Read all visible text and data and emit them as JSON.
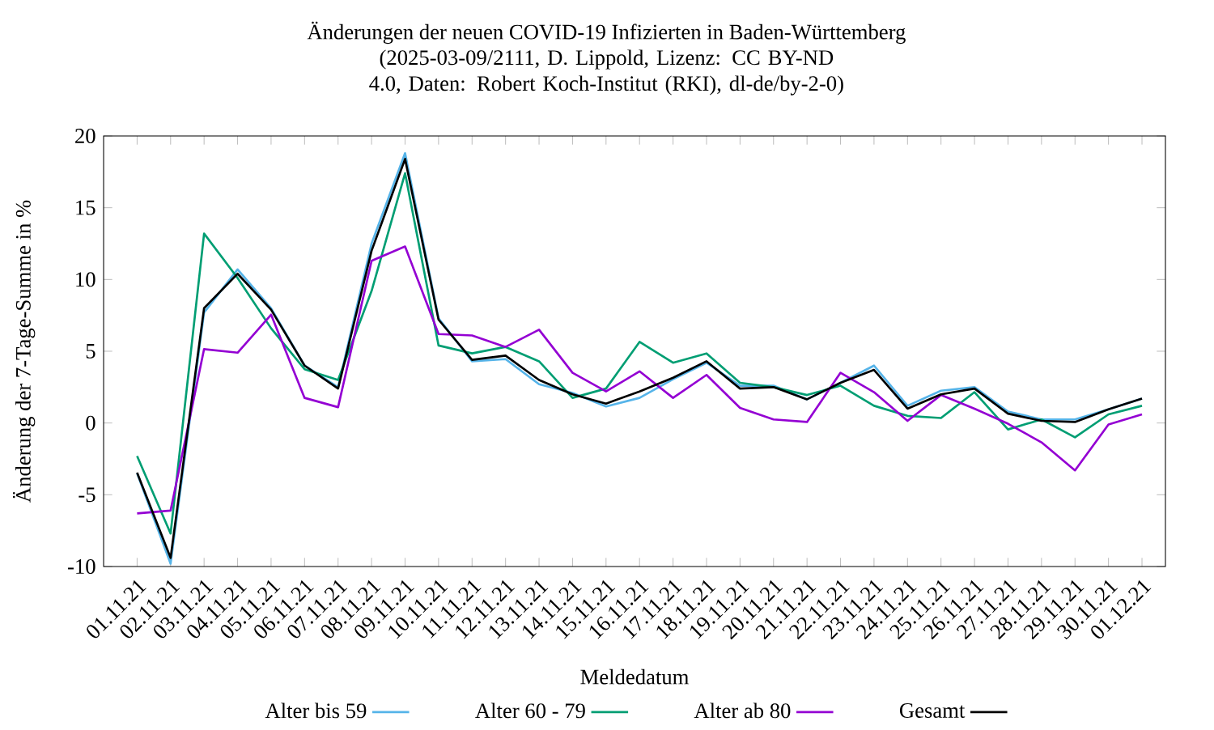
{
  "chart_data": {
    "type": "line",
    "title": "Änderungen der neuen COVID-19 Infizierten in Baden-Württemberg",
    "subtitle": "(2025-03-09/2111, D. Lippold, Lizenz: CC BY-ND 4.0, Daten: Robert Koch-Institut (RKI), dl-de/by-2-0)",
    "xlabel": "Meldedatum",
    "ylabel": "Änderung der 7-Tage-Summe in %",
    "categories": [
      "01.11.21",
      "02.11.21",
      "03.11.21",
      "04.11.21",
      "05.11.21",
      "06.11.21",
      "07.11.21",
      "08.11.21",
      "09.11.21",
      "10.11.21",
      "11.11.21",
      "12.11.21",
      "13.11.21",
      "14.11.21",
      "15.11.21",
      "16.11.21",
      "17.11.21",
      "18.11.21",
      "19.11.21",
      "20.11.21",
      "21.11.21",
      "22.11.21",
      "23.11.21",
      "24.11.21",
      "25.11.21",
      "26.11.21",
      "27.11.21",
      "28.11.21",
      "29.11.21",
      "30.11.21",
      "01.12.21"
    ],
    "series": [
      {
        "name": "Alter bis 59",
        "color": "#56b4e9",
        "values": [
          -3.5,
          -9.8,
          7.7,
          10.7,
          8.0,
          4.0,
          2.5,
          12.5,
          18.8,
          7.3,
          4.3,
          4.45,
          2.7,
          2.1,
          1.15,
          1.75,
          3.05,
          4.2,
          2.6,
          2.6,
          1.65,
          2.8,
          4.0,
          1.2,
          2.25,
          2.5,
          0.8,
          0.25,
          0.25,
          0.95,
          1.7
        ]
      },
      {
        "name": "Alter 60 - 79",
        "color": "#009e73",
        "values": [
          -2.3,
          -7.7,
          13.2,
          10.1,
          6.6,
          3.75,
          3.0,
          9.2,
          17.4,
          5.4,
          4.85,
          5.3,
          4.3,
          1.75,
          2.4,
          5.65,
          4.2,
          4.85,
          2.8,
          2.5,
          1.95,
          2.6,
          1.2,
          0.5,
          0.35,
          2.15,
          -0.45,
          0.25,
          -1.0,
          0.6,
          1.2
        ]
      },
      {
        "name": "Alter ab 80",
        "color": "#9400d3",
        "values": [
          -6.3,
          -6.1,
          5.15,
          4.9,
          7.55,
          1.75,
          1.1,
          11.3,
          12.3,
          6.2,
          6.1,
          5.3,
          6.5,
          3.5,
          2.2,
          3.6,
          1.75,
          3.35,
          1.05,
          0.25,
          0.07,
          3.5,
          2.15,
          0.15,
          1.95,
          1.0,
          -0.05,
          -1.35,
          -3.3,
          -0.1,
          0.6
        ]
      },
      {
        "name": "Gesamt",
        "color": "#000000",
        "values": [
          -3.46,
          -9.4,
          8.0,
          10.4,
          7.9,
          4.0,
          2.4,
          12.0,
          18.4,
          7.2,
          4.4,
          4.7,
          3.0,
          2.0,
          1.35,
          2.2,
          3.15,
          4.3,
          2.4,
          2.5,
          1.65,
          2.8,
          3.7,
          1.0,
          2.0,
          2.4,
          0.65,
          0.15,
          0.07,
          0.95,
          1.7
        ]
      }
    ],
    "ylim": [
      -10,
      20
    ],
    "yticks": [
      -10,
      -5,
      0,
      5,
      10,
      15,
      20
    ],
    "legend": "bottom"
  }
}
